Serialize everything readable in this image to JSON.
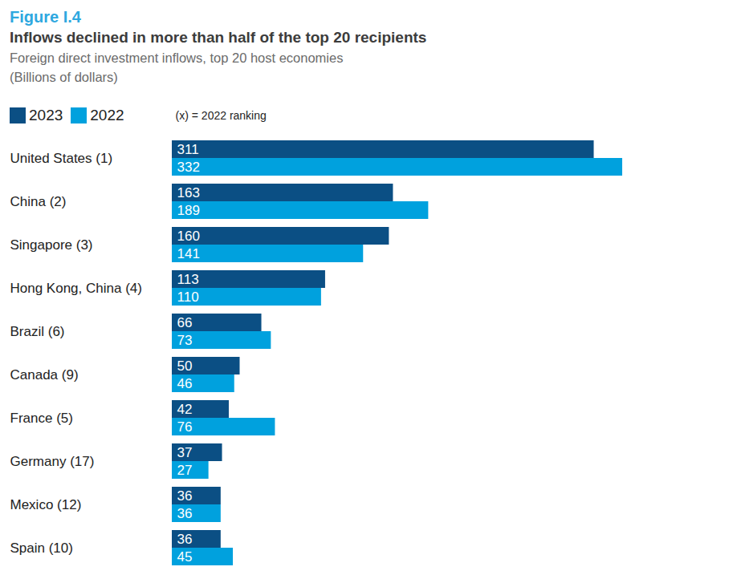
{
  "chart_data": {
    "type": "bar",
    "orientation": "horizontal",
    "figure_label": "Figure I.4",
    "title": "Inflows declined in more than half of the top 20 recipients",
    "subtitle": "Foreign direct investment inflows, top 20 host economies",
    "unit": "(Billions of dollars)",
    "legend_note": "(x) = 2022 ranking",
    "categories": [
      "United States (1)",
      "China (2)",
      "Singapore (3)",
      "Hong Kong, China (4)",
      "Brazil (6)",
      "Canada (9)",
      "France (5)",
      "Germany (17)",
      "Mexico (12)",
      "Spain (10)"
    ],
    "series": [
      {
        "name": "2023",
        "color": "#0b4f84",
        "values": [
          311,
          163,
          160,
          113,
          66,
          50,
          42,
          37,
          36,
          36
        ]
      },
      {
        "name": "2022",
        "color": "#00a1de",
        "values": [
          332,
          189,
          141,
          110,
          73,
          46,
          76,
          27,
          36,
          45
        ]
      }
    ],
    "xlim": [
      0,
      332
    ],
    "legend": "top-left",
    "data_labels": true,
    "tick_labels": "y",
    "grid": false
  }
}
